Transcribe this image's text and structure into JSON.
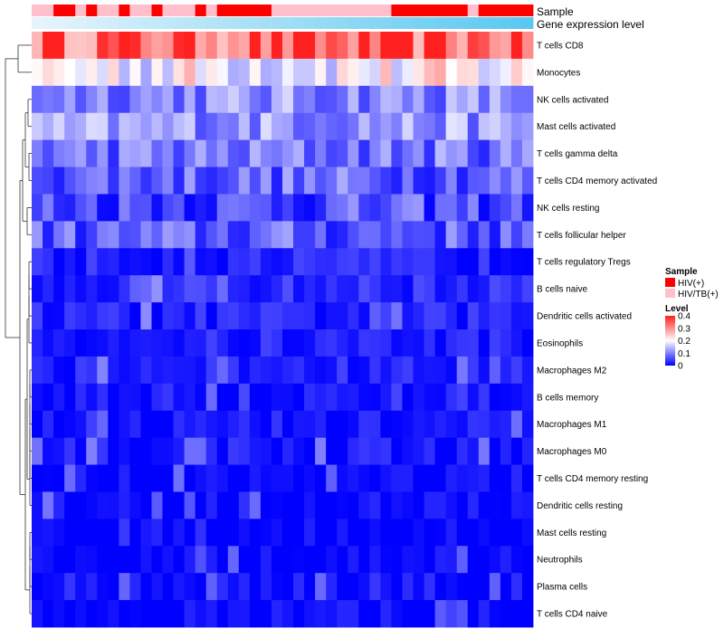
{
  "chart_data": {
    "type": "heatmap",
    "annotation_titles": [
      "Sample",
      "Gene expression level"
    ],
    "rows": [
      "T cells CD8",
      "Monocytes",
      "NK cells activated",
      "Mast cells activated",
      "T cells gamma delta",
      "T cells CD4 memory activated",
      "NK cells resting",
      "T cells follicular helper",
      "T cells regulatory  Tregs",
      "B cells naive",
      "Dendritic cells activated",
      "Eosinophils",
      "Macrophages M2",
      "B cells memory",
      "Macrophages M1",
      "Macrophages M0",
      "T cells CD4 memory resting",
      "Dendritic cells resting",
      "Mast cells resting",
      "Neutrophils",
      "Plasma cells",
      "T cells CD4 naive"
    ],
    "n_columns": 46,
    "row_mean_levels": [
      0.33,
      0.2,
      0.11,
      0.12,
      0.09,
      0.08,
      0.06,
      0.07,
      0.03,
      0.04,
      0.03,
      0.03,
      0.03,
      0.02,
      0.02,
      0.02,
      0.01,
      0.01,
      0.005,
      0.003,
      0.015,
      0.008
    ],
    "sample_groups": [
      "HIV(+)",
      "HIV/TB(+)"
    ],
    "sample_group_colors": [
      "#ff0000",
      "#ffc0cb"
    ],
    "sample_annotation": [
      1,
      1,
      0,
      0,
      1,
      0,
      1,
      1,
      0,
      1,
      1,
      0,
      1,
      1,
      1,
      0,
      1,
      0,
      0,
      0,
      0,
      0,
      1,
      1,
      1,
      1,
      1,
      1,
      1,
      1,
      1,
      1,
      1,
      0,
      0,
      0,
      0,
      0,
      0,
      0,
      1,
      0,
      0,
      0,
      0,
      0
    ],
    "expression_gradient": [
      "#e6f4fb",
      "#5bc8f0"
    ],
    "legend": {
      "sample_title": "Sample",
      "sample_labels": [
        "HIV(+)",
        "HIV/TB(+)"
      ],
      "level_title": "Level",
      "level_ticks": [
        "0.4",
        "0.3",
        "0.2",
        "0.1",
        "0"
      ],
      "level_tick_values": [
        0.4,
        0.3,
        0.2,
        0.1,
        0
      ],
      "color_scale": [
        "#0000ff",
        "#ffffff",
        "#ff2020"
      ],
      "color_scale_domain": [
        0,
        0.2,
        0.4
      ]
    },
    "dendrogram": "row clustering (left)"
  }
}
